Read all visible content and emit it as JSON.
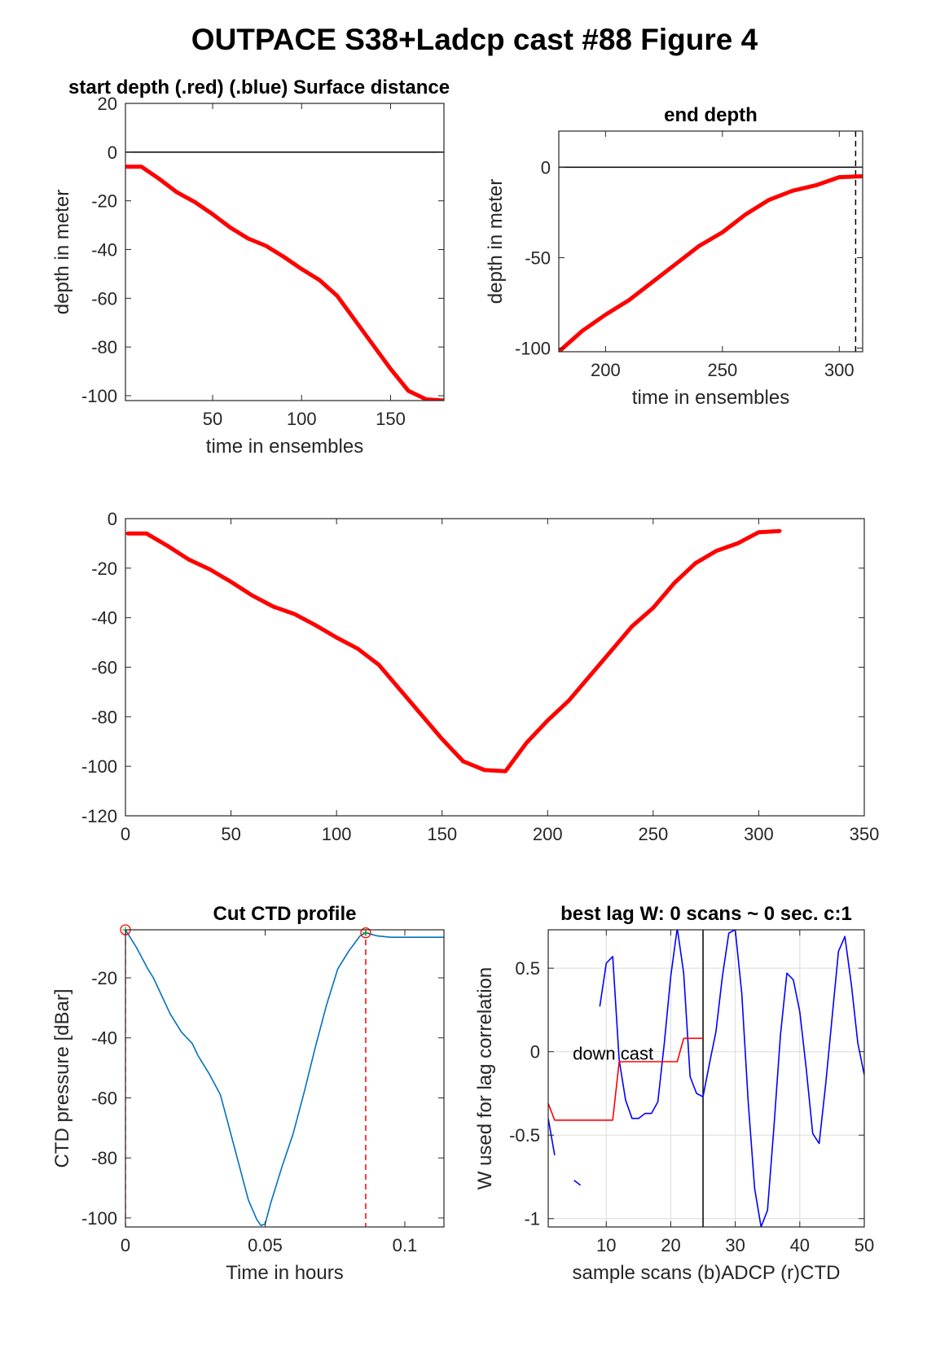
{
  "figure": {
    "title": "OUTPACE S38+Ladcp cast #88   Figure 4"
  },
  "chart_data": [
    {
      "id": "start",
      "type": "line",
      "title": "start depth (.red) (.blue) Surface distance",
      "xlabel": "time in ensembles",
      "ylabel": "depth in meter",
      "xlim": [
        1,
        180
      ],
      "ylim": [
        -102,
        20
      ],
      "xticks": [
        50,
        100,
        150
      ],
      "yticks": [
        -100,
        -80,
        -60,
        -40,
        -20,
        0,
        20
      ],
      "grid": false,
      "hlines": [
        {
          "y": 0,
          "color": "#000000"
        }
      ],
      "series": [
        {
          "color": "#ff0000",
          "x": [
            1,
            10,
            20,
            30,
            40,
            50,
            60,
            70,
            80,
            90,
            100,
            110,
            120,
            130,
            140,
            150,
            160,
            170,
            180
          ],
          "y": [
            -6,
            -6,
            -11,
            -16.5,
            -20.5,
            -25.5,
            -31,
            -35.5,
            -38.5,
            -43,
            -48,
            -52.5,
            -59,
            -69,
            -79,
            -89,
            -98,
            -101.5,
            -102
          ]
        }
      ]
    },
    {
      "id": "end",
      "type": "line",
      "title": "end depth",
      "xlabel": "time in ensembles",
      "ylabel": "depth in meter",
      "xlim": [
        180,
        310
      ],
      "ylim": [
        -102,
        20
      ],
      "xticks": [
        200,
        250,
        300
      ],
      "yticks": [
        -100,
        -50,
        0
      ],
      "grid": false,
      "hlines": [
        {
          "y": 0,
          "color": "#000000"
        }
      ],
      "vlines": [
        {
          "x": 307,
          "color": "#000000",
          "dash": true
        }
      ],
      "series": [
        {
          "color": "#ff0000",
          "x": [
            180,
            190,
            200,
            210,
            220,
            230,
            240,
            250,
            260,
            270,
            280,
            290,
            300,
            310
          ],
          "y": [
            -102,
            -90.5,
            -81.5,
            -73.5,
            -63.5,
            -53.5,
            -43.5,
            -36,
            -26,
            -18,
            -13,
            -10,
            -5.5,
            -5
          ]
        }
      ]
    },
    {
      "id": "full",
      "type": "line",
      "title": "",
      "xlabel": "",
      "ylabel": "",
      "xlim": [
        0,
        350
      ],
      "ylim": [
        -120,
        0
      ],
      "xticks": [
        0,
        50,
        100,
        150,
        200,
        250,
        300,
        350
      ],
      "yticks": [
        -120,
        -100,
        -80,
        -60,
        -40,
        -20,
        0
      ],
      "grid": false,
      "series": [
        {
          "color": "#ff0000",
          "x": [
            1,
            10,
            20,
            30,
            40,
            50,
            60,
            70,
            80,
            90,
            100,
            110,
            120,
            130,
            140,
            150,
            160,
            170,
            180,
            190,
            200,
            210,
            220,
            230,
            240,
            250,
            260,
            270,
            280,
            290,
            300,
            310
          ],
          "y": [
            -6,
            -6,
            -11,
            -16.5,
            -20.5,
            -25.5,
            -31,
            -35.5,
            -38.5,
            -43,
            -48,
            -52.5,
            -59,
            -69,
            -79,
            -89,
            -98,
            -101.5,
            -102,
            -90.5,
            -81.5,
            -73.5,
            -63.5,
            -53.5,
            -43.5,
            -36,
            -26,
            -18,
            -13,
            -10,
            -5.5,
            -5
          ]
        }
      ]
    },
    {
      "id": "ctd",
      "type": "line",
      "title": "Cut CTD profile",
      "xlabel": "Time in hours",
      "ylabel": "CTD pressure [dBar]",
      "xlim": [
        0,
        0.114
      ],
      "ylim": [
        -103,
        -4
      ],
      "xticks": [
        0,
        0.05,
        0.1
      ],
      "xtick_labels": [
        "0",
        "0.05",
        "0.1"
      ],
      "yticks": [
        -100,
        -80,
        -60,
        -40,
        -20
      ],
      "grid": false,
      "vlines": [
        {
          "x": 0,
          "color": "#ff0000",
          "dash": true
        },
        {
          "x": 0.086,
          "color": "#ff0000",
          "dash": true
        }
      ],
      "markers": [
        {
          "x": 0,
          "y": -4,
          "color": "#ff0000"
        },
        {
          "x": 0.086,
          "y": -5,
          "color": "#ff0000"
        }
      ],
      "series": [
        {
          "color": "#0072bd",
          "x": [
            0,
            0.004,
            0.008,
            0.01,
            0.013,
            0.016,
            0.02,
            0.024,
            0.026,
            0.03,
            0.034,
            0.036,
            0.04,
            0.044,
            0.047,
            0.0485,
            0.05,
            0.052,
            0.056,
            0.06,
            0.064,
            0.068,
            0.072,
            0.076,
            0.08,
            0.084,
            0.086,
            0.09,
            0.095,
            0.1,
            0.105,
            0.11,
            0.114
          ],
          "y": [
            -4,
            -10,
            -17,
            -20,
            -26,
            -32,
            -38,
            -42,
            -46,
            -52,
            -59,
            -66,
            -80,
            -94,
            -100.5,
            -102.5,
            -102,
            -95,
            -83,
            -72,
            -58,
            -43,
            -29,
            -17,
            -11,
            -6,
            -5,
            -6,
            -6.5,
            -6.5,
            -6.5,
            -6.5,
            -6.5
          ]
        }
      ]
    },
    {
      "id": "lag",
      "type": "line",
      "title": "best lag W: 0 scans ~ 0 sec.  c:1",
      "xlabel": "sample scans (b)ADCP (r)CTD",
      "ylabel": "W used for lag correlation",
      "xlim": [
        1,
        50
      ],
      "ylim": [
        -1.05,
        0.73
      ],
      "xticks": [
        10,
        20,
        30,
        40,
        50
      ],
      "yticks": [
        -1,
        -0.5,
        0,
        0.5
      ],
      "grid": true,
      "vlines": [
        {
          "x": 25,
          "color": "#000000",
          "dash": false
        }
      ],
      "annotations": [
        {
          "text": "down cast",
          "x": 4.8,
          "y": -0.01
        }
      ],
      "series": [
        {
          "color": "#0000ff",
          "segments": [
            {
              "x": [
                1,
                2
              ],
              "y": [
                -0.4,
                -0.62
              ]
            },
            {
              "x": [
                5,
                6
              ],
              "y": [
                -0.77,
                -0.8
              ]
            },
            {
              "x": [
                9,
                10,
                11,
                12,
                13,
                14,
                15,
                16,
                17,
                18,
                19,
                20,
                21,
                22,
                23,
                24,
                25,
                26,
                27,
                28,
                29,
                30,
                31,
                32,
                33,
                34,
                35,
                36,
                37,
                38,
                39,
                40,
                41,
                42,
                43,
                44,
                45,
                46,
                47,
                48,
                49,
                50
              ],
              "y": [
                0.27,
                0.53,
                0.57,
                -0.05,
                -0.29,
                -0.4,
                -0.4,
                -0.37,
                -0.37,
                -0.3,
                0.05,
                0.45,
                0.74,
                0.47,
                -0.15,
                -0.25,
                -0.27,
                -0.07,
                0.12,
                0.45,
                0.71,
                0.73,
                0.35,
                -0.3,
                -0.82,
                -1.05,
                -0.95,
                -0.45,
                0.1,
                0.47,
                0.43,
                0.24,
                -0.1,
                -0.49,
                -0.55,
                -0.2,
                0.2,
                0.6,
                0.69,
                0.4,
                0.05,
                -0.14
              ]
            }
          ]
        },
        {
          "color": "#ff0000",
          "segments": [
            {
              "x": [
                1,
                2,
                3,
                4,
                5,
                6,
                7,
                8,
                9,
                10,
                11,
                12,
                13,
                14,
                15,
                16,
                17,
                18,
                19,
                20,
                21,
                22,
                23,
                24,
                25
              ],
              "y": [
                -0.31,
                -0.41,
                -0.41,
                -0.41,
                -0.41,
                -0.41,
                -0.41,
                -0.41,
                -0.41,
                -0.41,
                -0.41,
                -0.06,
                -0.06,
                -0.06,
                -0.06,
                -0.06,
                -0.06,
                -0.06,
                -0.06,
                -0.06,
                -0.06,
                0.08,
                0.08,
                0.08,
                0.08
              ]
            }
          ]
        }
      ]
    }
  ]
}
